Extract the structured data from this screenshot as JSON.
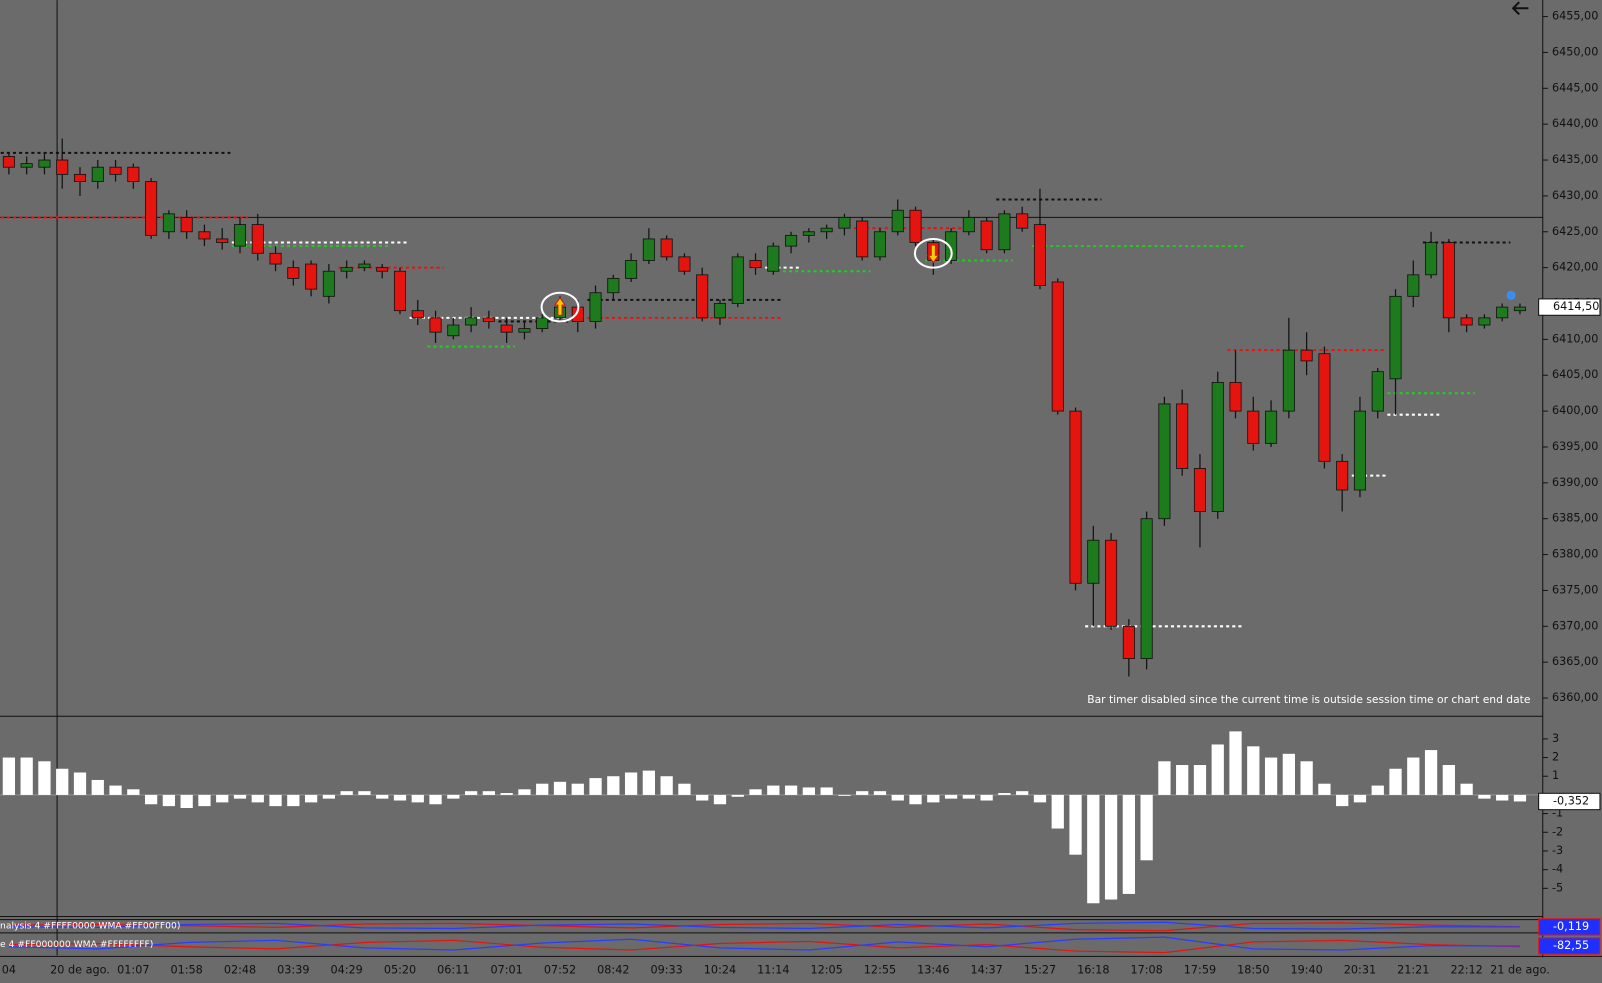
{
  "chart_data": [
    {
      "type": "candlestick",
      "categories": [
        "04",
        null,
        null,
        null,
        "20 de ago.",
        null,
        null,
        "01:07",
        null,
        null,
        "01:58",
        null,
        null,
        "02:48",
        null,
        null,
        "03:39",
        null,
        null,
        "04:29",
        null,
        null,
        "05:20",
        null,
        null,
        "06:11",
        null,
        null,
        "07:01",
        null,
        null,
        "07:52",
        null,
        null,
        "08:42",
        null,
        null,
        "09:33",
        null,
        null,
        "10:24",
        null,
        null,
        "11:14",
        null,
        null,
        "12:05",
        null,
        null,
        "12:55",
        null,
        null,
        "13:46",
        null,
        null,
        "14:37",
        null,
        null,
        "15:27",
        null,
        null,
        "16:18",
        null,
        null,
        "17:08",
        null,
        null,
        "17:59",
        null,
        null,
        "18:50",
        null,
        null,
        "19:40",
        null,
        null,
        "20:31",
        null,
        null,
        "21:21",
        null,
        null,
        "22:12",
        null,
        null,
        "21 de ago."
      ],
      "open": [
        6435.5,
        6434,
        6434,
        6435,
        6433,
        6432,
        6434,
        6434,
        6432,
        6425,
        6427,
        6425,
        6424,
        6423,
        6426,
        6422,
        6420,
        6420.5,
        6416,
        6419.5,
        6420,
        6420,
        6419.5,
        6414,
        6413,
        6410.5,
        6412,
        6413,
        6412,
        6411,
        6411.5,
        6413,
        6414.5,
        6412.5,
        6416.5,
        6418.5,
        6421,
        6424,
        6421.5,
        6419,
        6413,
        6415,
        6421,
        6419.5,
        6423,
        6424.5,
        6425,
        6425.5,
        6426.5,
        6421.5,
        6425,
        6428,
        6423.5,
        6421,
        6425,
        6426.5,
        6422.5,
        6427.5,
        6426,
        6418,
        6400,
        6376,
        6382,
        6370,
        6365.5,
        6385,
        6401,
        6392,
        6386,
        6404,
        6400,
        6395.5,
        6400,
        6408.5,
        6408,
        6393,
        6389,
        6400,
        6404.5,
        6416,
        6419,
        6423.5,
        6413,
        6412,
        6413,
        6414
      ],
      "high": [
        6436,
        6435.5,
        6436,
        6438,
        6434,
        6435,
        6435,
        6434.5,
        6432.5,
        6428,
        6428,
        6426,
        6425.5,
        6427,
        6427.5,
        6423,
        6421,
        6421,
        6420.5,
        6421,
        6421,
        6420.5,
        6420,
        6415.5,
        6414,
        6413,
        6414.5,
        6414,
        6413,
        6412.5,
        6413.5,
        6416,
        6415.5,
        6417.5,
        6419,
        6422,
        6425.5,
        6424.5,
        6422,
        6420,
        6415.5,
        6422,
        6422,
        6423.5,
        6425,
        6425.5,
        6426,
        6427.5,
        6427,
        6425.5,
        6429.5,
        6428.5,
        6424,
        6425.5,
        6428,
        6427,
        6428,
        6428.5,
        6431,
        6418.5,
        6400.5,
        6384,
        6383,
        6371,
        6386,
        6402,
        6403,
        6394,
        6405.5,
        6408.5,
        6402,
        6401.5,
        6413,
        6411,
        6409,
        6394,
        6402,
        6406,
        6417,
        6421,
        6425,
        6424,
        6413.5,
        6413.5,
        6415,
        6415
      ],
      "low": [
        6433,
        6433,
        6433,
        6431,
        6430,
        6431,
        6432,
        6431,
        6424,
        6424,
        6424,
        6423,
        6422.5,
        6422,
        6421,
        6419.5,
        6417.5,
        6416,
        6415,
        6418.5,
        6419.5,
        6418.5,
        6413.5,
        6412,
        6409.5,
        6410,
        6411,
        6411.5,
        6409.5,
        6410,
        6411,
        6412.5,
        6411,
        6411.5,
        6415.5,
        6418,
        6420.5,
        6421,
        6419,
        6412.5,
        6412,
        6414.5,
        6419,
        6419,
        6422,
        6423.5,
        6424,
        6424.5,
        6421,
        6421,
        6424.5,
        6423,
        6419,
        6420.5,
        6424.5,
        6422,
        6422,
        6425,
        6417,
        6399.5,
        6375,
        6370,
        6369.5,
        6363,
        6364,
        6384,
        6391,
        6381,
        6385,
        6399,
        6394.5,
        6395,
        6399,
        6405,
        6392,
        6386,
        6388,
        6399,
        6399.5,
        6414.5,
        6418.5,
        6411,
        6411,
        6411.5,
        6412.5,
        6413.5
      ],
      "close": [
        6434,
        6434.5,
        6435,
        6433,
        6432,
        6434,
        6433,
        6432,
        6424.5,
        6427.5,
        6425,
        6424,
        6423.5,
        6426,
        6422,
        6420.5,
        6418.5,
        6417,
        6419.5,
        6420,
        6420.5,
        6419.5,
        6414,
        6413,
        6411,
        6412,
        6413,
        6412.5,
        6411,
        6411.5,
        6413,
        6414.5,
        6412.5,
        6416.5,
        6418.5,
        6421,
        6424,
        6421.5,
        6419.5,
        6413,
        6415,
        6421.5,
        6420,
        6423,
        6424.5,
        6425,
        6425.5,
        6427,
        6421.5,
        6425,
        6428,
        6423.5,
        6421,
        6425,
        6427,
        6422.5,
        6427.5,
        6425.5,
        6417.5,
        6400,
        6376,
        6382,
        6370,
        6365.5,
        6385,
        6401,
        6392,
        6386,
        6404,
        6400,
        6395.5,
        6400,
        6408.5,
        6407,
        6393,
        6389,
        6400,
        6405.5,
        6416,
        6419,
        6423.5,
        6413,
        6412,
        6413,
        6414.5,
        6414.5
      ],
      "up_color": "#1d7a1d",
      "down_color": "#e5140f",
      "ylim": [
        6357.6,
        6457.3
      ],
      "yticks": [
        {
          "value": 6360,
          "label": "6360,00"
        },
        {
          "value": 6365,
          "label": "6365,00"
        },
        {
          "value": 6370,
          "label": "6370,00"
        },
        {
          "value": 6375,
          "label": "6375,00"
        },
        {
          "value": 6380,
          "label": "6380,00"
        },
        {
          "value": 6385,
          "label": "6385,00"
        },
        {
          "value": 6390,
          "label": "6390,00"
        },
        {
          "value": 6395,
          "label": "6395,00"
        },
        {
          "value": 6400,
          "label": "6400,00"
        },
        {
          "value": 6405,
          "label": "6405,00"
        },
        {
          "value": 6410,
          "label": "6410,00"
        },
        {
          "value": 6415,
          "label": "6415,00"
        },
        {
          "value": 6420,
          "label": "6420,00"
        },
        {
          "value": 6425,
          "label": "6425,00"
        },
        {
          "value": 6430,
          "label": "6430,00"
        },
        {
          "value": 6435,
          "label": "6435,00"
        },
        {
          "value": 6440,
          "label": "6440,00"
        },
        {
          "value": 6445,
          "label": "6445,00"
        },
        {
          "value": 6450,
          "label": "6450,00"
        },
        {
          "value": 6455,
          "label": "6455,00"
        }
      ],
      "last_value": {
        "value": 6414.5,
        "label": "6414,50"
      },
      "crosshair": {
        "index": 3,
        "value": 6427
      },
      "levels": [
        {
          "value": 6436,
          "from": 0,
          "to": 12,
          "color": "#111111"
        },
        {
          "value": 6427,
          "from": 0,
          "to": 13,
          "color": "#e5140f"
        },
        {
          "value": 6423.5,
          "from": 13,
          "to": 22,
          "color": "#ffffff"
        },
        {
          "value": 6423,
          "from": 13,
          "to": 21,
          "color": "#22cc22"
        },
        {
          "value": 6420,
          "from": 19,
          "to": 24,
          "color": "#e5140f"
        },
        {
          "value": 6413,
          "from": 23,
          "to": 31,
          "color": "#ffffff"
        },
        {
          "value": 6409,
          "from": 24,
          "to": 28,
          "color": "#22cc22"
        },
        {
          "value": 6412.5,
          "from": 28,
          "to": 31,
          "color": "#111111"
        },
        {
          "value": 6415.5,
          "from": 33,
          "to": 43,
          "color": "#111111"
        },
        {
          "value": 6413,
          "from": 33,
          "to": 43,
          "color": "#e5140f"
        },
        {
          "value": 6420,
          "from": 43,
          "to": 44,
          "color": "#ffffff"
        },
        {
          "value": 6419.5,
          "from": 44,
          "to": 48,
          "color": "#22cc22"
        },
        {
          "value": 6425.5,
          "from": 48,
          "to": 54,
          "color": "#e5140f"
        },
        {
          "value": 6421,
          "from": 52,
          "to": 56,
          "color": "#22cc22"
        },
        {
          "value": 6429.5,
          "from": 56,
          "to": 61,
          "color": "#111111"
        },
        {
          "value": 6423,
          "from": 58,
          "to": 69,
          "color": "#22cc22"
        },
        {
          "value": 6370,
          "from": 61,
          "to": 69,
          "color": "#ffffff"
        },
        {
          "value": 6408.5,
          "from": 69,
          "to": 77,
          "color": "#e5140f"
        },
        {
          "value": 6391,
          "from": 76,
          "to": 77,
          "color": "#ffffff"
        },
        {
          "value": 6402.5,
          "from": 78,
          "to": 82,
          "color": "#22cc22"
        },
        {
          "value": 6399.5,
          "from": 78,
          "to": 80,
          "color": "#ffffff"
        },
        {
          "value": 6423.5,
          "from": 80,
          "to": 84,
          "color": "#111111"
        }
      ],
      "signals": [
        {
          "index": 31,
          "direction": "up",
          "value": 6414.5
        },
        {
          "index": 52,
          "direction": "down",
          "value": 6422
        }
      ],
      "annotation": "Bar timer disabled since the current time is outside session time or chart end date"
    },
    {
      "type": "bar",
      "values": [
        2.0,
        2.0,
        1.8,
        1.4,
        1.2,
        0.8,
        0.5,
        0.3,
        -0.5,
        -0.6,
        -0.7,
        -0.6,
        -0.4,
        -0.2,
        -0.4,
        -0.6,
        -0.6,
        -0.4,
        -0.2,
        0.2,
        0.2,
        -0.2,
        -0.3,
        -0.4,
        -0.5,
        -0.2,
        0.2,
        0.2,
        0.1,
        0.3,
        0.6,
        0.7,
        0.6,
        0.9,
        1.0,
        1.2,
        1.3,
        1.0,
        0.6,
        -0.3,
        -0.5,
        -0.1,
        0.3,
        0.5,
        0.5,
        0.4,
        0.4,
        -0.05,
        0.2,
        0.2,
        -0.3,
        -0.5,
        -0.4,
        -0.2,
        -0.2,
        -0.3,
        0.1,
        0.2,
        -0.4,
        -1.8,
        -3.2,
        -5.8,
        -5.6,
        -5.3,
        -3.5,
        1.8,
        1.6,
        1.6,
        2.7,
        3.4,
        2.6,
        2.0,
        2.2,
        1.8,
        0.6,
        -0.6,
        -0.4,
        0.5,
        1.4,
        2.0,
        2.4,
        1.6,
        0.6,
        -0.2,
        -0.3,
        -0.35
      ],
      "color": "#ffffff",
      "ylim": [
        -6.4,
        4.1
      ],
      "yticks": [
        -5,
        -4,
        -3,
        -2,
        -1,
        1,
        2,
        3
      ],
      "last_value": {
        "value": -0.352,
        "label": "-0,352"
      }
    },
    {
      "type": "line",
      "title": "nalysis 4 #FFFF0000 WMA #FF00FF00)",
      "x": [
        0,
        5,
        10,
        15,
        20,
        25,
        30,
        35,
        40,
        45,
        50,
        55,
        60,
        65,
        70,
        75,
        80,
        85
      ],
      "series": [
        {
          "color": "#e5140f",
          "values": [
            0.2,
            0.3,
            0.1,
            -0.2,
            0.4,
            0.5,
            0.1,
            -0.3,
            0.3,
            0.5,
            -0.2,
            0.4,
            -0.6,
            -0.8,
            0.5,
            0.6,
            0.2,
            -0.1
          ]
        },
        {
          "color": "#2a3cff",
          "values": [
            -0.1,
            -0.2,
            0.3,
            0.5,
            -0.3,
            -0.4,
            0.2,
            0.4,
            -0.2,
            -0.4,
            0.3,
            -0.3,
            0.5,
            0.7,
            -0.4,
            -0.5,
            -0.1,
            -0.119
          ]
        }
      ],
      "ylim": [
        -1,
        1
      ],
      "last_value": {
        "value": -0.119,
        "label": "-0,119"
      }
    },
    {
      "type": "line",
      "title": "e 4 #FF000000 WMA #FFFFFFFF)",
      "x": [
        0,
        5,
        10,
        15,
        20,
        25,
        30,
        35,
        40,
        45,
        50,
        55,
        60,
        65,
        70,
        75,
        80,
        85
      ],
      "series": [
        {
          "color": "#e5140f",
          "values": [
            -80,
            -78,
            -84,
            -88,
            -76,
            -72,
            -85,
            -90,
            -78,
            -74,
            -86,
            -80,
            -92,
            -95,
            -75,
            -72,
            -80,
            -84
          ]
        },
        {
          "color": "#2a3cff",
          "values": [
            -84,
            -88,
            -76,
            -72,
            -86,
            -90,
            -77,
            -70,
            -86,
            -90,
            -75,
            -84,
            -70,
            -66,
            -88,
            -90,
            -82,
            -82.55
          ]
        }
      ],
      "ylim": [
        -100,
        -60
      ],
      "last_value": {
        "value": -82.55,
        "label": "-82,55"
      }
    }
  ]
}
